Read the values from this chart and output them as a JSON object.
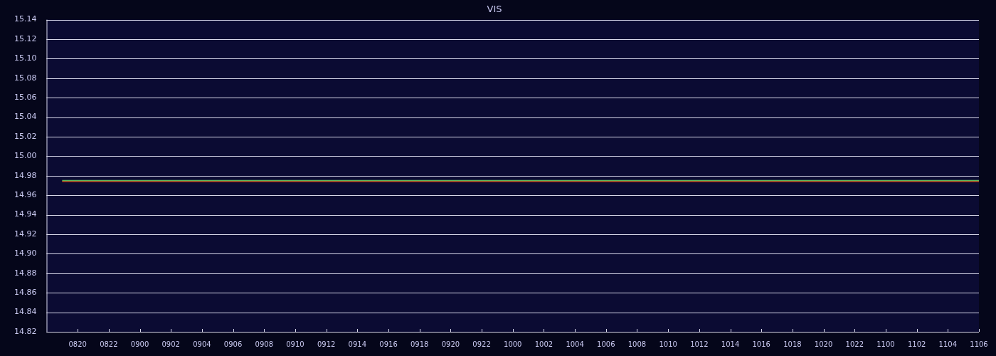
{
  "chart_data": {
    "type": "line",
    "title": "VIS",
    "categories": [
      null,
      null,
      "0820",
      null,
      "0822",
      null,
      "0900",
      null,
      "0902",
      null,
      "0904",
      null,
      "0906",
      null,
      "0908",
      null,
      "0910",
      null,
      "0912",
      null,
      "0914",
      null,
      "0916",
      null,
      "0918",
      null,
      "0920",
      null,
      "0922",
      null,
      "1000",
      null,
      "1002",
      null,
      "1004",
      null,
      "1006",
      null,
      "1008",
      null,
      "1010",
      null,
      "1012",
      null,
      "1014",
      null,
      "1016",
      null,
      "1018",
      null,
      "1020",
      null,
      "1022",
      null,
      "1100",
      null,
      "1102",
      null,
      "1104",
      null,
      "1106"
    ],
    "series": [
      {
        "color": "#5cb85c",
        "values": [
          null,
          14.975,
          14.975,
          14.975,
          14.975,
          14.975,
          14.975,
          14.975,
          14.975,
          14.975,
          14.975,
          14.975,
          14.975,
          14.975,
          14.975,
          14.975,
          14.975,
          14.975,
          14.975,
          14.975,
          14.975,
          14.975,
          14.975,
          14.975,
          14.975,
          14.975,
          14.975,
          14.975,
          14.975,
          14.975,
          14.975,
          14.975,
          14.975,
          14.975,
          14.975,
          14.975,
          14.975,
          14.975,
          14.975,
          14.975,
          14.975,
          14.975,
          14.975,
          14.975,
          14.975,
          14.975,
          14.975,
          14.975,
          14.975,
          14.975,
          14.975,
          14.975,
          14.975,
          14.975,
          14.975,
          14.975,
          14.975,
          14.975,
          14.975,
          14.975,
          14.975
        ]
      },
      {
        "color": "#cc0000",
        "values": [
          null,
          14.974,
          14.974,
          14.974,
          14.974,
          14.974,
          14.974,
          14.974,
          14.974,
          14.974,
          14.974,
          14.974,
          14.974,
          14.974,
          14.974,
          14.974,
          14.974,
          14.974,
          14.974,
          14.974,
          14.974,
          14.974,
          14.974,
          14.974,
          14.974,
          14.974,
          14.974,
          14.974,
          14.974,
          14.974,
          14.974,
          14.974,
          14.974,
          14.974,
          14.974,
          14.974,
          14.974,
          14.974,
          14.974,
          14.974,
          14.974,
          14.974,
          14.974,
          14.974,
          14.974,
          14.974,
          14.974,
          14.974,
          14.974,
          14.974,
          14.974,
          14.974,
          14.974,
          14.974,
          14.974,
          14.974,
          14.974,
          14.974,
          14.974,
          14.974,
          14.974
        ]
      }
    ],
    "ylim": [
      14.82,
      15.14
    ],
    "yticks": [
      {
        "value": 14.82,
        "label": "14.82"
      },
      {
        "value": 14.84,
        "label": "14.84"
      },
      {
        "value": 14.86,
        "label": "14.86"
      },
      {
        "value": 14.88,
        "label": "14.88"
      },
      {
        "value": 14.9,
        "label": "14.90"
      },
      {
        "value": 14.92,
        "label": "14.92"
      },
      {
        "value": 14.94,
        "label": "14.94"
      },
      {
        "value": 14.96,
        "label": "14.96"
      },
      {
        "value": 14.98,
        "label": "14.98"
      },
      {
        "value": 15,
        "label": "15.00"
      },
      {
        "value": 15.02,
        "label": "15.02"
      },
      {
        "value": 15.04,
        "label": "15.04"
      },
      {
        "value": 15.06,
        "label": "15.06"
      },
      {
        "value": 15.08,
        "label": "15.08"
      },
      {
        "value": 15.1,
        "label": "15.10"
      },
      {
        "value": 15.12,
        "label": "15.12"
      },
      {
        "value": 15.14,
        "label": "15.14"
      }
    ],
    "grid": "y",
    "legend": false,
    "marker": "none",
    "line_style": "solid"
  }
}
